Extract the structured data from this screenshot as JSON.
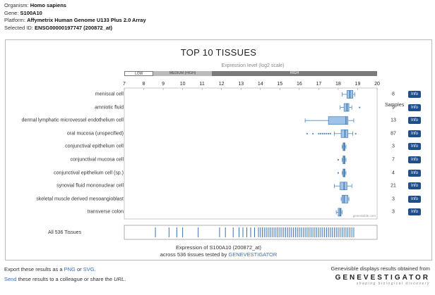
{
  "meta": {
    "organism_label": "Organism:",
    "organism": "Homo sapiens",
    "gene_label": "Gene:",
    "gene": "S100A10",
    "platform_label": "Platform:",
    "platform": "Affymetrix Human Genome U133 Plus 2.0 Array",
    "selected_id_label": "Selected ID:",
    "selected_id": "ENSG00000197747 (200872_at)"
  },
  "chart_data": {
    "type": "boxplot",
    "title": "TOP 10 TISSUES",
    "xlabel": "Expression level (log2 scale)",
    "xlim": [
      7,
      20
    ],
    "xticks": [
      7,
      8,
      9,
      10,
      11,
      12,
      13,
      14,
      15,
      16,
      17,
      18,
      19,
      20
    ],
    "levels": [
      {
        "label": "LOW",
        "from": 7,
        "to": 8.5
      },
      {
        "label": "MEDIUM (HIGH)",
        "from": 8.5,
        "to": 11.5
      },
      {
        "label": "HIGH",
        "from": 11.5,
        "to": 20
      }
    ],
    "samples_header": "Samples",
    "info_label": "Info",
    "watermark": "genevisible.com",
    "tissues": [
      {
        "name": "meniscal cell",
        "samples": "8",
        "min": 18.2,
        "q1": 18.45,
        "median": 18.6,
        "q3": 18.75,
        "max": 18.85,
        "outliers": []
      },
      {
        "name": "amniotic fluid",
        "samples": "9",
        "min": 18.1,
        "q1": 18.3,
        "median": 18.45,
        "q3": 18.55,
        "max": 18.7,
        "outliers": [
          19.1
        ]
      },
      {
        "name": "dermal lymphatic microvessel endothelium cell",
        "samples": "13",
        "min": 16.3,
        "q1": 17.5,
        "median": 18.4,
        "q3": 18.5,
        "max": 18.8,
        "outliers": []
      },
      {
        "name": "oral mucosa (unspecified)",
        "samples": "87",
        "min": 17.8,
        "q1": 18.15,
        "median": 18.35,
        "q3": 18.5,
        "max": 18.75,
        "outliers": [
          16.4,
          16.7,
          17.0,
          17.1,
          17.2,
          17.3,
          17.4,
          17.5,
          17.6,
          18.9
        ]
      },
      {
        "name": "conjunctival epithelium cell",
        "samples": "3",
        "min": 18.2,
        "q1": 18.25,
        "median": 18.3,
        "q3": 18.35,
        "max": 18.4,
        "outliers": []
      },
      {
        "name": "conjunctival mucosa cell",
        "samples": "7",
        "min": 18.2,
        "q1": 18.25,
        "median": 18.3,
        "q3": 18.35,
        "max": 18.4,
        "outliers": [
          18.0
        ]
      },
      {
        "name": "conjunctival epithelium cell (sp.)",
        "samples": "4",
        "min": 18.2,
        "q1": 18.25,
        "median": 18.3,
        "q3": 18.35,
        "max": 18.4,
        "outliers": [
          18.0
        ]
      },
      {
        "name": "synovial fluid mononuclear cell",
        "samples": "21",
        "min": 17.8,
        "q1": 18.1,
        "median": 18.3,
        "q3": 18.45,
        "max": 18.7,
        "outliers": []
      },
      {
        "name": "skeletal muscle derived mesoangioblast",
        "samples": "3",
        "min": 18.15,
        "q1": 18.2,
        "median": 18.3,
        "q3": 18.5,
        "max": 18.55,
        "outliers": []
      },
      {
        "name": "transverse colon",
        "samples": "3",
        "min": 17.9,
        "q1": 18.0,
        "median": 18.1,
        "q3": 18.15,
        "max": 18.2,
        "outliers": []
      }
    ],
    "all_label": "All 536 Tissues",
    "all_values": [
      8.6,
      9.3,
      9.7,
      10.0,
      10.8,
      11.9,
      12.2,
      12.6,
      12.9,
      13.1,
      13.3,
      13.5,
      13.7,
      13.9,
      14.0,
      14.1,
      14.2,
      14.3,
      14.4,
      14.5,
      14.6,
      14.7,
      14.8,
      14.9,
      15.0,
      15.1,
      15.2,
      15.3,
      15.4,
      15.5,
      15.6,
      15.7,
      15.8,
      15.9,
      16.0,
      16.1,
      16.2,
      16.3,
      16.4,
      16.5,
      16.6,
      16.7,
      16.8,
      16.9,
      17.0,
      17.1,
      17.2,
      17.3,
      17.4,
      17.5,
      17.6,
      17.7,
      17.8,
      17.9,
      18.0,
      18.1,
      18.2,
      18.3,
      18.4,
      18.5,
      18.6,
      18.7,
      18.8
    ],
    "footnote_line1": "Expression of S100A10 (200872_at)",
    "footnote_line2_pre": "across 536 tissues tested by ",
    "footnote_link": "GENEVESTIGATOR"
  },
  "footer": {
    "export_pre": "Export these results as a ",
    "png": "PNG",
    "or": " or ",
    "svg": "SVG",
    "period": ".",
    "send": "Send",
    "send_post": " these results to a colleague or share the ",
    "url": "URL",
    "url_period": ".",
    "right_line": "Genevisible displays results obtained from",
    "logo": "GENEVESTIGATOR",
    "tagline": "shaping biological discovery"
  },
  "colors": {
    "box_fill": "#9ec3e6",
    "box_stroke": "#4f86bd",
    "info_button": "#1f4e8c",
    "link": "#3a6fb0"
  }
}
